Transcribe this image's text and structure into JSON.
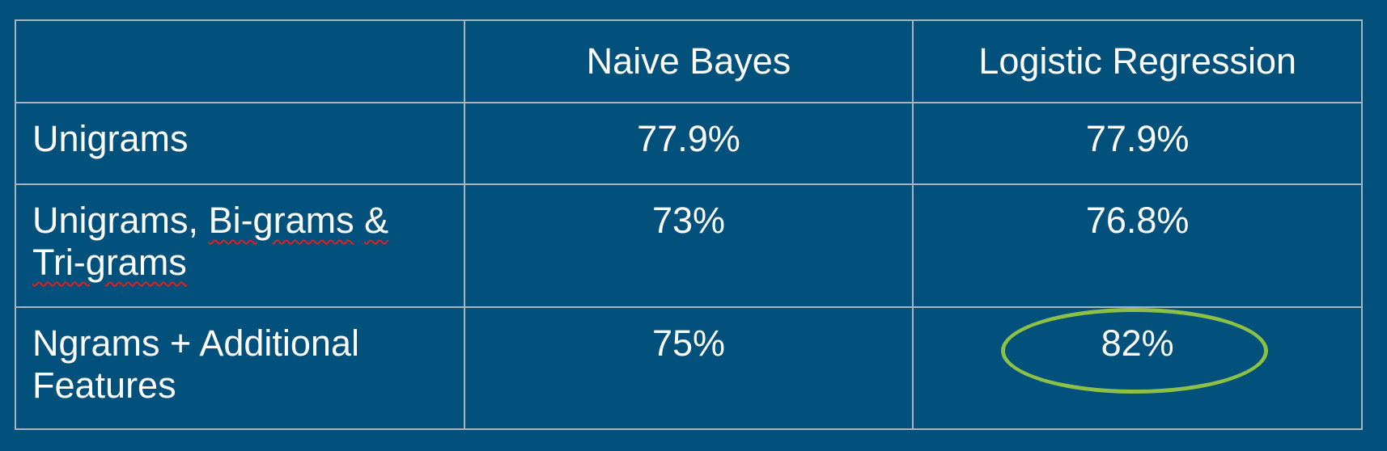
{
  "table": {
    "headers": [
      "",
      "Naive Bayes",
      "Logistic Regression"
    ],
    "rows": [
      {
        "label_parts": [
          "Unigrams"
        ],
        "values": [
          "77.9%",
          "77.9%"
        ]
      },
      {
        "label_parts": [
          "Unigrams, ",
          "Bi-grams",
          " ",
          "&",
          "Tri-grams"
        ],
        "values": [
          "73%",
          "76.8%"
        ]
      },
      {
        "label_parts": [
          "Ngrams + Additional",
          "Features"
        ],
        "values": [
          "75%",
          "82%"
        ]
      }
    ]
  },
  "colors": {
    "background": "#02507c",
    "grid_line": "#a9b4bc",
    "text": "#ffffff",
    "highlight_oval": "#8dc145",
    "spellcheck_underline": "#e02020"
  },
  "highlight": {
    "row": 3,
    "column": "Logistic Regression",
    "value": "82%"
  }
}
